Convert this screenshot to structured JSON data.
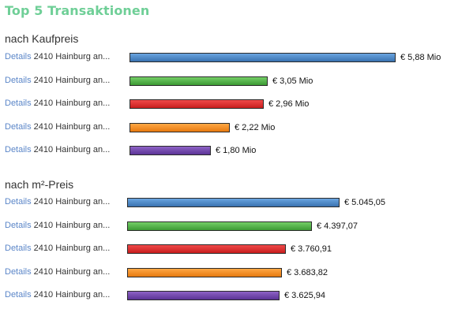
{
  "title": "Top 5 Transaktionen",
  "colors": {
    "title": "#6fcf97",
    "bars": [
      [
        "#6aa5e0",
        "#3a72b0"
      ],
      [
        "#74cf67",
        "#3c9a34"
      ],
      [
        "#f04a4a",
        "#c81e1e"
      ],
      [
        "#ffa845",
        "#e67a10"
      ],
      [
        "#8e63c6",
        "#5c3496"
      ]
    ]
  },
  "chart_data": [
    {
      "type": "bar",
      "title": "nach Kaufpreis",
      "categories": [
        "2410 Hainburg an...",
        "2410 Hainburg an...",
        "2410 Hainburg an...",
        "2410 Hainburg an...",
        "2410 Hainburg an..."
      ],
      "values": [
        5.88,
        3.05,
        2.96,
        2.22,
        1.8
      ],
      "value_labels": [
        "€ 5,88 Mio",
        "€ 3,05 Mio",
        "€ 2,96 Mio",
        "€ 2,22 Mio",
        "€ 1,80 Mio"
      ],
      "link_label": "Details",
      "orientation": "horizontal"
    },
    {
      "type": "bar",
      "title": "nach m²-Preis",
      "categories": [
        "2410 Hainburg an...",
        "2410 Hainburg an...",
        "2410 Hainburg an...",
        "2410 Hainburg an...",
        "2410 Hainburg an..."
      ],
      "values": [
        5045.05,
        4397.07,
        3760.91,
        3683.82,
        3625.94
      ],
      "value_labels": [
        "€ 5.045,05",
        "€ 4.397,07",
        "€ 3.760,91",
        "€ 3.683,82",
        "€ 3.625,94"
      ],
      "link_label": "Details",
      "orientation": "horizontal"
    }
  ]
}
